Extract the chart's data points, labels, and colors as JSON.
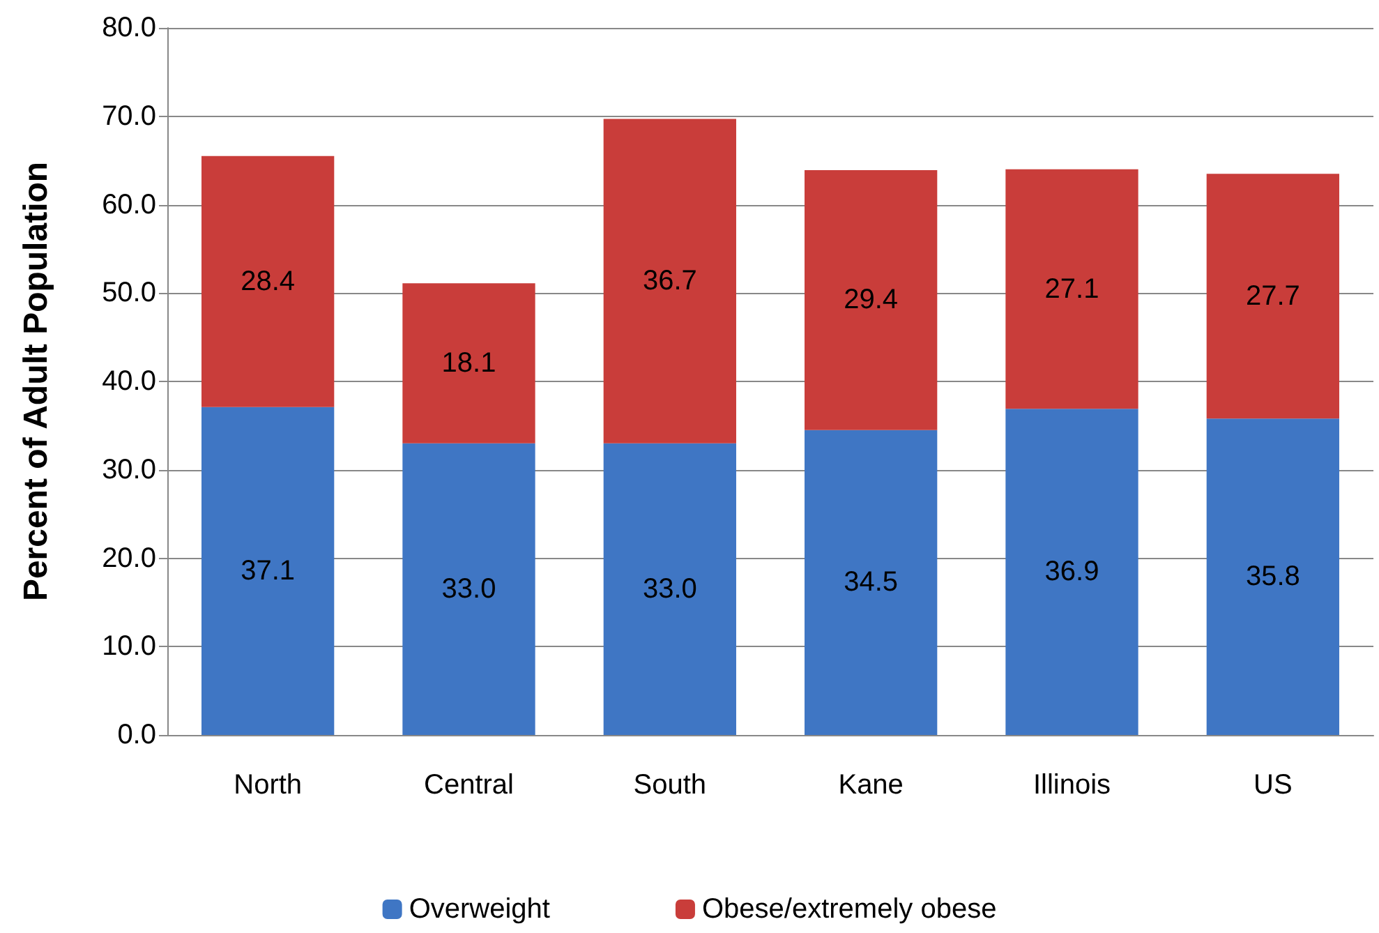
{
  "chart_data": {
    "type": "bar",
    "stacked": true,
    "ylabel": "Percent of Adult Population",
    "categories": [
      "North",
      "Central",
      "South",
      "Kane",
      "Illinois",
      "US"
    ],
    "series": [
      {
        "name": "Overweight",
        "color": "#3f76c4",
        "values": [
          37.1,
          33.0,
          33.0,
          34.5,
          36.9,
          35.8
        ],
        "value_labels": [
          "37.1",
          "33.0",
          "33.0",
          "34.5",
          "36.9",
          "35.8"
        ]
      },
      {
        "name": "Obese/extremely obese",
        "color": "#c93d3a",
        "values": [
          28.4,
          18.1,
          36.7,
          29.4,
          27.1,
          27.7
        ],
        "value_labels": [
          "28.4",
          "18.1",
          "36.7",
          "29.4",
          "27.1",
          "27.7"
        ]
      }
    ],
    "ylim": [
      0,
      80
    ],
    "yticks": [
      {
        "value": 0,
        "label": "0.0"
      },
      {
        "value": 10,
        "label": "10.0"
      },
      {
        "value": 20,
        "label": "20.0"
      },
      {
        "value": 30,
        "label": "30.0"
      },
      {
        "value": 40,
        "label": "40.0"
      },
      {
        "value": 50,
        "label": "50.0"
      },
      {
        "value": 60,
        "label": "60.0"
      },
      {
        "value": 70,
        "label": "70.0"
      },
      {
        "value": 80,
        "label": "80.0"
      }
    ],
    "grid": "y",
    "legend": "bottom"
  }
}
